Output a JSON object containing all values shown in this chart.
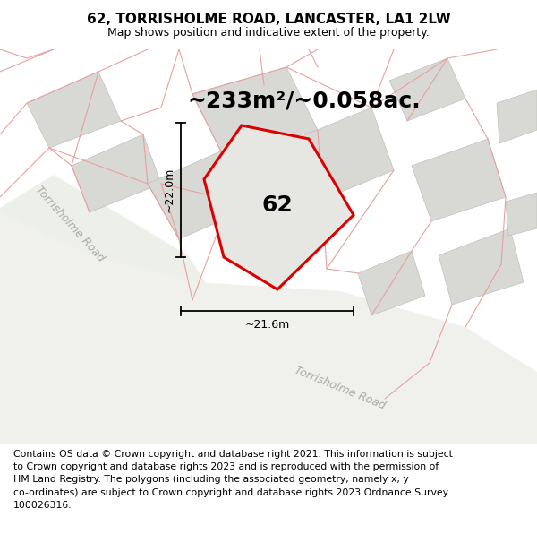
{
  "title": "62, TORRISHOLME ROAD, LANCASTER, LA1 2LW",
  "subtitle": "Map shows position and indicative extent of the property.",
  "area_label": "~233m²/~0.058ac.",
  "number_label": "62",
  "dim_width": "~21.6m",
  "dim_height": "~22.0m",
  "road_label_left": "Torrisholme Road",
  "road_label_bottom": "Torrisholme Road",
  "copyright_text": "Contains OS data © Crown copyright and database right 2021. This information is subject\nto Crown copyright and database rights 2023 and is reproduced with the permission of\nHM Land Registry. The polygons (including the associated geometry, namely x, y\nco-ordinates) are subject to Crown copyright and database rights 2023 Ordnance Survey\n100026316.",
  "bg_white": "#ffffff",
  "map_bg": "#f8f8f5",
  "plot_fill": "#e8e8e4",
  "road_green_fill": "#e5eae2",
  "red_color": "#dd0000",
  "light_red": "#e8a0a0",
  "gray_building": "#d8d8d4",
  "gray_border": "#b8b8b4",
  "title_fontsize": 11,
  "subtitle_fontsize": 9,
  "area_fontsize": 18,
  "number_fontsize": 18,
  "copyright_fontsize": 7.8,
  "road_label_color": "#aaaaaa",
  "road_label_size": 9
}
